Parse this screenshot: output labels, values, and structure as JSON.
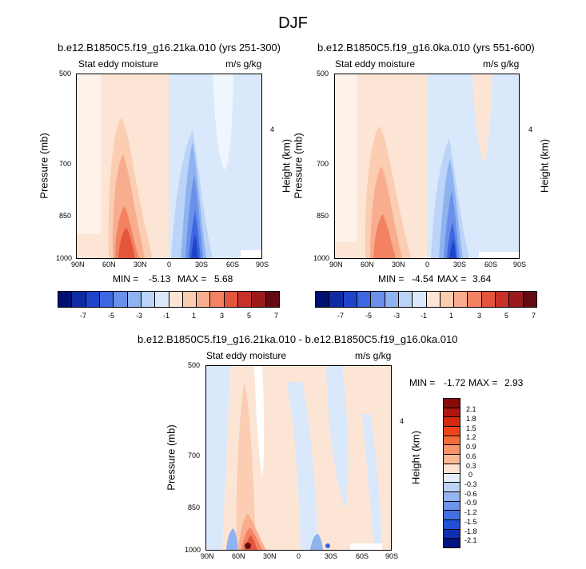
{
  "title": "DJF",
  "colors": {
    "scale_red": [
      "#fde5d5",
      "#fbcdb2",
      "#f8ad8e",
      "#f28262",
      "#e4563c",
      "#c8302a",
      "#9b1b1d",
      "#650913"
    ],
    "scale_blue": [
      "#dae8fb",
      "#bbd4f7",
      "#8fb2f0",
      "#6a90ea",
      "#3d67e0",
      "#1f44c9",
      "#0f2aa3",
      "#001070"
    ],
    "neutral": "#ffffff"
  },
  "chart_data": [
    {
      "type": "heatmap",
      "panel": "top-left",
      "title": "b.e12.B1850C5.f19_g16.21ka.010 (yrs 251-300)",
      "left_label": "Stat eddy moisture",
      "right_label": "m/s g/kg",
      "ylabel": "Pressure (mb)",
      "y2label": "Height (km)",
      "x_ticks": [
        "90N",
        "60N",
        "30N",
        "0",
        "30S",
        "60S",
        "90S"
      ],
      "y_ticks": [
        "500",
        "700",
        "850",
        "1000"
      ],
      "y2_ticks": [
        "4"
      ],
      "stats": {
        "min_label": "MIN =",
        "min": "-5.13",
        "max_label": "MAX =",
        "max": "5.68"
      },
      "colorbar": {
        "orientation": "horizontal",
        "labels": [
          "-7",
          "-5",
          "-3",
          "-1",
          "1",
          "3",
          "5",
          "7"
        ]
      }
    },
    {
      "type": "heatmap",
      "panel": "top-right",
      "title": "b.e12.B1850C5.f19_g16.0ka.010 (yrs 551-600)",
      "left_label": "Stat eddy moisture",
      "right_label": "m/s g/kg",
      "ylabel": "Pressure (mb)",
      "y2label": "Height (km)",
      "x_ticks": [
        "90N",
        "60N",
        "30N",
        "0",
        "30S",
        "60S",
        "90S"
      ],
      "y_ticks": [
        "500",
        "700",
        "850",
        "1000"
      ],
      "y2_ticks": [
        "4"
      ],
      "stats": {
        "min_label": "MIN =",
        "min": "-4.54",
        "max_label": "MAX =",
        "max": "3.64"
      },
      "colorbar": {
        "orientation": "horizontal",
        "labels": [
          "-7",
          "-5",
          "-3",
          "-1",
          "1",
          "3",
          "5",
          "7"
        ]
      }
    },
    {
      "type": "heatmap",
      "panel": "bottom",
      "title": "b.e12.B1850C5.f19_g16.21ka.010 - b.e12.B1850C5.f19_g16.0ka.010",
      "left_label": "Stat eddy moisture",
      "right_label": "m/s g/kg",
      "ylabel": "Pressure (mb)",
      "y2label": "Height (km)",
      "x_ticks": [
        "90N",
        "60N",
        "30N",
        "0",
        "30S",
        "60S",
        "90S"
      ],
      "y_ticks": [
        "500",
        "700",
        "850",
        "1000"
      ],
      "y2_ticks": [
        "4"
      ],
      "stats": {
        "min_label": "MIN =",
        "min": "-1.72",
        "max_label": "MAX =",
        "max": "2.93"
      },
      "colorbar": {
        "orientation": "vertical",
        "labels": [
          "2.1",
          "1.8",
          "1.5",
          "1.2",
          "0.9",
          "0.6",
          "0.3",
          "0",
          "-0.3",
          "-0.6",
          "-0.9",
          "-1.2",
          "-1.5",
          "-1.8",
          "-2.1"
        ]
      }
    }
  ]
}
